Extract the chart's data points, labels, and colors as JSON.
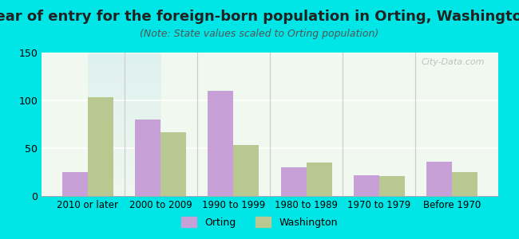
{
  "categories": [
    "2010 or later",
    "2000 to 2009",
    "1990 to 1999",
    "1980 to 1989",
    "1970 to 1979",
    "Before 1970"
  ],
  "orting_values": [
    25,
    80,
    110,
    30,
    22,
    36
  ],
  "washington_values": [
    103,
    67,
    53,
    35,
    21,
    25
  ],
  "orting_color": "#c8a0d8",
  "washington_color": "#b8c890",
  "title": "Year of entry for the foreign-born population in Orting, Washington",
  "subtitle": "(Note: State values scaled to Orting population)",
  "title_fontsize": 13,
  "subtitle_fontsize": 9,
  "ylim": [
    0,
    150
  ],
  "yticks": [
    0,
    50,
    100,
    150
  ],
  "background_outer": "#00e5e5",
  "background_inner_top": "#e8f5e8",
  "background_inner_bottom": "#d0eef0",
  "bar_width": 0.35,
  "legend_orting": "Orting",
  "legend_washington": "Washington",
  "watermark": "City-Data.com"
}
